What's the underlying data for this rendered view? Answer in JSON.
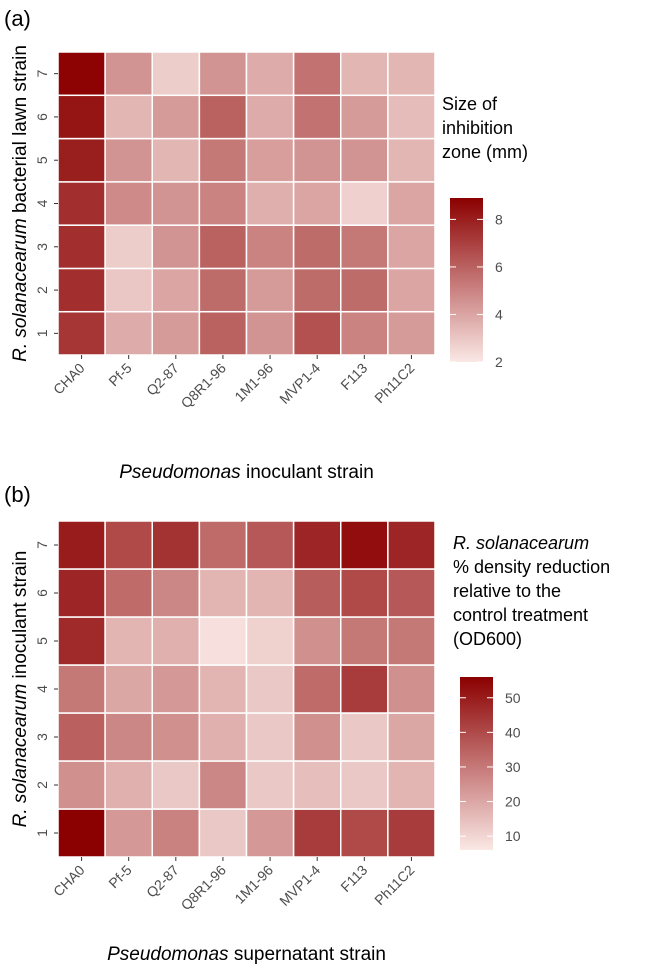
{
  "chart_data": [
    {
      "type": "heatmap",
      "panel_label": "(a)",
      "x_categories": [
        "CHA0",
        "Pf-5",
        "Q2-87",
        "Q8R1-96",
        "1M1-96",
        "MVP1-4",
        "F113",
        "Ph11C2"
      ],
      "y_categories": [
        "1",
        "2",
        "3",
        "4",
        "5",
        "6",
        "7"
      ],
      "values": [
        [
          7.3,
          3.8,
          4.3,
          6.0,
          4.5,
          6.5,
          5.0,
          4.3
        ],
        [
          7.5,
          3.0,
          4.0,
          5.7,
          4.3,
          5.7,
          5.7,
          4.0
        ],
        [
          7.5,
          2.8,
          4.5,
          6.0,
          5.0,
          5.7,
          5.3,
          4.0
        ],
        [
          7.5,
          4.8,
          4.5,
          5.0,
          3.7,
          4.0,
          2.7,
          4.0
        ],
        [
          8.0,
          4.5,
          3.5,
          5.3,
          4.2,
          4.5,
          4.5,
          3.5
        ],
        [
          8.3,
          3.5,
          4.3,
          6.0,
          3.8,
          5.5,
          4.3,
          3.3
        ],
        [
          8.8,
          4.5,
          2.8,
          4.5,
          3.8,
          5.5,
          3.5,
          3.5
        ]
      ],
      "xlabel": [
        "Pseudomonas",
        " inoculant strain"
      ],
      "ylabel": [
        "R. solanacearum",
        " bacterial lawn strain"
      ],
      "legend_title": [
        "Size of",
        "inhibition",
        "zone (mm)"
      ],
      "legend_title_italic_first": false,
      "zlim": [
        2,
        8.9
      ],
      "zticks": [
        2,
        4,
        6,
        8
      ],
      "low_color": "#fae8e5",
      "high_color": "#8b0000"
    },
    {
      "type": "heatmap",
      "panel_label": "(b)",
      "x_categories": [
        "CHA0",
        "Pf-5",
        "Q2-87",
        "Q8R1-96",
        "1M1-96",
        "MVP1-4",
        "F113",
        "Ph11C2"
      ],
      "y_categories": [
        "1",
        "2",
        "3",
        "4",
        "5",
        "6",
        "7"
      ],
      "values": [
        [
          56,
          23,
          28,
          13,
          23,
          43,
          40,
          43
        ],
        [
          25,
          18,
          13,
          27,
          13,
          15,
          13,
          17
        ],
        [
          35,
          27,
          25,
          18,
          13,
          25,
          13,
          20
        ],
        [
          30,
          20,
          23,
          17,
          13,
          33,
          43,
          25
        ],
        [
          47,
          17,
          18,
          8,
          11,
          25,
          30,
          30
        ],
        [
          48,
          33,
          27,
          17,
          17,
          36,
          40,
          37
        ],
        [
          50,
          40,
          45,
          33,
          37,
          48,
          53,
          48
        ]
      ],
      "xlabel": [
        "Pseudomonas",
        " supernatant strain"
      ],
      "ylabel": [
        "R. solanacearum",
        " inoculant strain"
      ],
      "legend_title": [
        "R. solanacearum",
        "% density reduction",
        "relative to the",
        "control treatment",
        "(OD600)"
      ],
      "legend_title_italic_first": true,
      "zlim": [
        6,
        56
      ],
      "zticks": [
        10,
        20,
        30,
        40,
        50
      ],
      "low_color": "#fae8e5",
      "high_color": "#8b0000"
    }
  ]
}
